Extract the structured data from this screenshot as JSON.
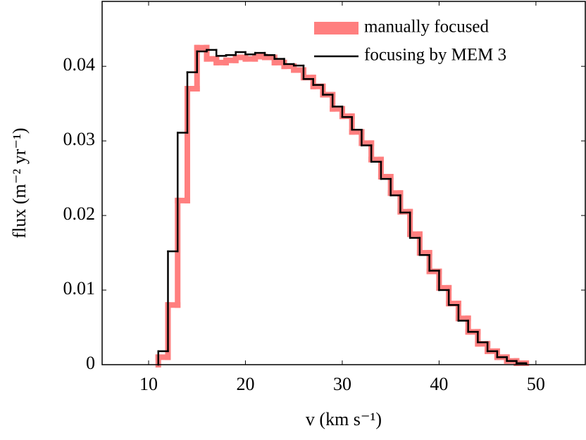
{
  "chart_data": {
    "type": "step-histogram",
    "x_label": "v (km s⁻¹)",
    "y_label": "flux (m⁻² yr⁻¹)",
    "bins": [
      11,
      12,
      13,
      14,
      15,
      16,
      17,
      18,
      19,
      20,
      21,
      22,
      23,
      24,
      25,
      26,
      27,
      28,
      29,
      30,
      31,
      32,
      33,
      34,
      35,
      36,
      37,
      38,
      39,
      40,
      41,
      42,
      43,
      44,
      45,
      46,
      47,
      48,
      49
    ],
    "series": [
      {
        "name": "manually focused",
        "color": "#ff7f7f",
        "values": [
          0.001,
          0.008,
          0.022,
          0.037,
          0.0425,
          0.041,
          0.0405,
          0.0408,
          0.0412,
          0.041,
          0.0413,
          0.0412,
          0.0405,
          0.04,
          0.0395,
          0.0385,
          0.0373,
          0.0362,
          0.0343,
          0.0333,
          0.0312,
          0.0297,
          0.0275,
          0.0252,
          0.023,
          0.0205,
          0.0175,
          0.015,
          0.0125,
          0.0103,
          0.0082,
          0.0062,
          0.0044,
          0.0028,
          0.0018,
          0.001,
          0.0005,
          0.0002
        ]
      },
      {
        "name": "focusing by MEM 3",
        "color": "#000000",
        "values": [
          0.0018,
          0.0152,
          0.0311,
          0.0392,
          0.042,
          0.0422,
          0.0414,
          0.0415,
          0.0419,
          0.0416,
          0.0418,
          0.0415,
          0.041,
          0.0403,
          0.0401,
          0.0383,
          0.0375,
          0.0362,
          0.0346,
          0.0332,
          0.0315,
          0.0294,
          0.0272,
          0.0249,
          0.0227,
          0.0204,
          0.017,
          0.0147,
          0.0126,
          0.01,
          0.008,
          0.0059,
          0.0044,
          0.003,
          0.0018,
          0.001,
          0.0005,
          0.0002
        ]
      }
    ],
    "xlim": [
      5.2,
      55.1
    ],
    "ylim": [
      0,
      0.0487
    ],
    "xticks": [
      10,
      20,
      30,
      40,
      50
    ],
    "yticks": [
      0,
      0.01,
      0.02,
      0.03,
      0.04
    ],
    "legend": "upper right"
  }
}
